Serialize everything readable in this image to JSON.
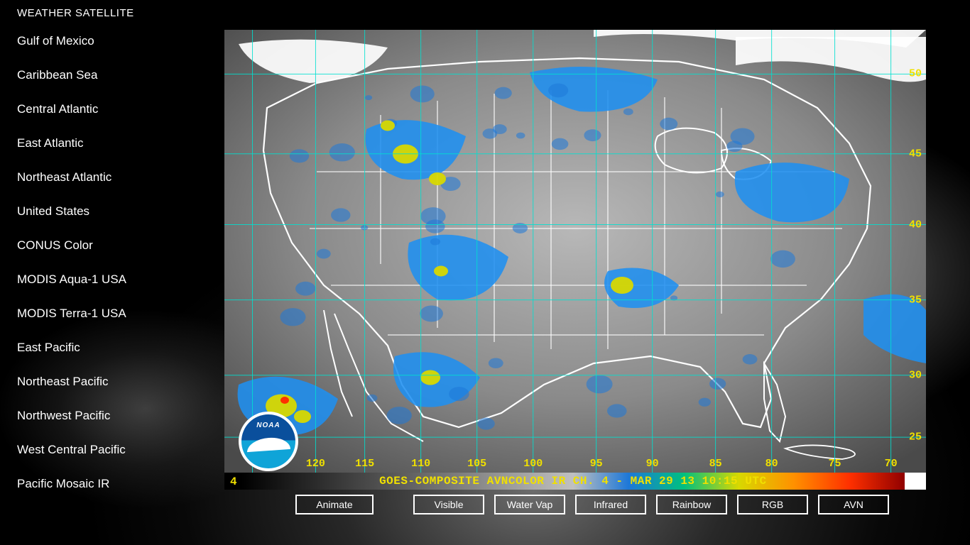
{
  "app_title": "WEATHER SATELLITE",
  "sidebar": {
    "items": [
      "Gulf of Mexico",
      "Caribbean Sea",
      "Central Atlantic",
      "East Atlantic",
      "Northeast Atlantic",
      "United States",
      "CONUS Color",
      "MODIS Aqua-1 USA",
      "MODIS Terra-1 USA",
      "East Pacific",
      "Northeast Pacific",
      "Northwest Pacific",
      "West Central Pacific",
      "Pacific Mosaic IR"
    ]
  },
  "map": {
    "channel_label": "4",
    "timestamp_text": "GOES-COMPOSITE AVNCOLOR IR CH. 4  - MAR 29 13 10:15 UTC",
    "grid_color": "#00e0d0",
    "state_line_color": "#ffffff",
    "land_fill": "#7c7c7c",
    "ocean_fill": "#4a4a4a",
    "cloud_colors": {
      "low": "#a0a0a0",
      "mid_blue": "#1e78d8",
      "bright_blue": "#1f8ff0",
      "yellow": "#d8d800",
      "hot": "#ff3000",
      "white": "#ffffff"
    },
    "colorbar_gradient": [
      "#000000",
      "#202020",
      "#404040",
      "#606060",
      "#808080",
      "#a0a0a0",
      "#c0c0c0",
      "#1e78d8",
      "#00c080",
      "#d8d800",
      "#ff9000",
      "#ff3000",
      "#900000"
    ],
    "lon_labels": [
      {
        "v": "120",
        "pct": 13
      },
      {
        "v": "115",
        "pct": 20
      },
      {
        "v": "110",
        "pct": 28
      },
      {
        "v": "105",
        "pct": 36
      },
      {
        "v": "100",
        "pct": 44
      },
      {
        "v": "95",
        "pct": 53
      },
      {
        "v": "90",
        "pct": 61
      },
      {
        "v": "85",
        "pct": 70
      },
      {
        "v": "80",
        "pct": 78
      },
      {
        "v": "75",
        "pct": 87
      },
      {
        "v": "70",
        "pct": 95
      }
    ],
    "lat_labels": [
      {
        "v": "50",
        "pct": 10
      },
      {
        "v": "45",
        "pct": 28
      },
      {
        "v": "40",
        "pct": 44
      },
      {
        "v": "35",
        "pct": 61
      },
      {
        "v": "30",
        "pct": 78
      },
      {
        "v": "25",
        "pct": 92
      }
    ],
    "grid_vlines_pct": [
      4,
      13,
      20,
      28,
      36,
      44,
      53,
      61,
      70,
      78,
      87,
      95
    ],
    "grid_hlines_pct": [
      10,
      28,
      44,
      61,
      78,
      92
    ],
    "noaa_label": "NOAA"
  },
  "toolbar": {
    "animate": "Animate",
    "visible": "Visible",
    "water_vap": "Water Vap",
    "infrared": "Infrared",
    "rainbow": "Rainbow",
    "rgb": "RGB",
    "avn": "AVN"
  }
}
